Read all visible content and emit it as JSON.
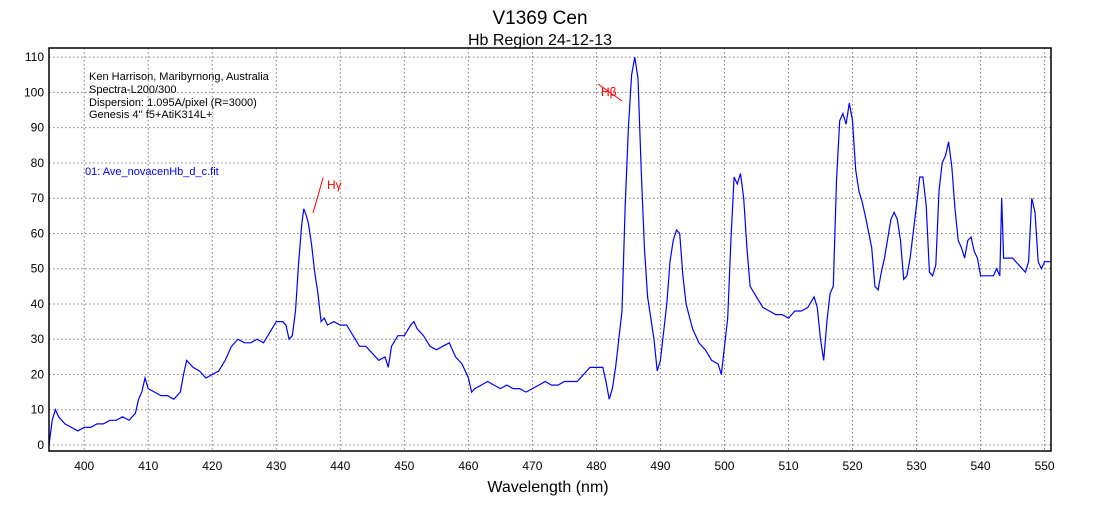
{
  "chart_data": {
    "type": "line",
    "title": "V1369 Cen",
    "subtitle": "Hb Region 24-12-13",
    "xlabel": "Wavelength (nm)",
    "ylabel": "",
    "xlim": [
      394.5,
      551
    ],
    "ylim": [
      -1.7,
      112.6
    ],
    "xticks": [
      400,
      410,
      420,
      430,
      440,
      450,
      460,
      470,
      480,
      490,
      500,
      510,
      520,
      530,
      540,
      550
    ],
    "yticks": [
      0,
      10,
      20,
      30,
      40,
      50,
      60,
      70,
      80,
      90,
      100,
      110
    ],
    "grid": true,
    "line_color": "#0000ff",
    "annotation_color": "#ff0000",
    "info_lines": [
      "Ken Harrison, Maribyrnong, Australia",
      "Spectra-L200/300",
      "Dispersion: 1.095A/pixel (R=3000)",
      "Genesis 4'' f5+AtiK314L+"
    ],
    "series_label": "01: Ave_novacenHb_d_c.fit",
    "annotations": [
      {
        "text": "Hγ",
        "x": 434.3
      },
      {
        "text": "Hβ",
        "x": 486.1
      }
    ],
    "series": [
      {
        "x": [
          394.5,
          395,
          395.5,
          396,
          397,
          398,
          399,
          400,
          401,
          402,
          403,
          404,
          405,
          406,
          407,
          408,
          408.5,
          409,
          409.5,
          410,
          411,
          412,
          413,
          414,
          415,
          415.5,
          416,
          417,
          418,
          419,
          420,
          421,
          422,
          423,
          424,
          425,
          426,
          427,
          428,
          429,
          430,
          431,
          431.5,
          432,
          432.5,
          433,
          433.5,
          434,
          434.3,
          434.7,
          435,
          435.5,
          436,
          436.5,
          437,
          437.5,
          438,
          439,
          440,
          441,
          442,
          443,
          444,
          445,
          446,
          447,
          447.5,
          448,
          449,
          450,
          451,
          451.5,
          452,
          453,
          454,
          455,
          456,
          457,
          458,
          459,
          460,
          460.5,
          461,
          462,
          463,
          464,
          465,
          466,
          467,
          468,
          469,
          470,
          471,
          472,
          473,
          474,
          475,
          476,
          477,
          478,
          479,
          480,
          481,
          481.5,
          482,
          482.5,
          483,
          484,
          484.5,
          485,
          485.5,
          486,
          486.5,
          487,
          487.5,
          488,
          489,
          489.5,
          490,
          491,
          491.5,
          492,
          492.5,
          493,
          493.5,
          494,
          495,
          496,
          497,
          498,
          499,
          499.5,
          500,
          500.5,
          501,
          501.5,
          502,
          502.5,
          503,
          503.5,
          504,
          505,
          506,
          507,
          508,
          509,
          510,
          511,
          512,
          513,
          514,
          514.5,
          515,
          515.5,
          516,
          516.5,
          517,
          517.5,
          518,
          518.5,
          519,
          519.5,
          520,
          520.5,
          521,
          521.5,
          522,
          523,
          523.5,
          524,
          524.5,
          525,
          526,
          526.5,
          527,
          527.5,
          528,
          528.5,
          529,
          530,
          530.5,
          531,
          531.5,
          532,
          532.5,
          533,
          533.5,
          534,
          534.5,
          535,
          535.5,
          536,
          536.5,
          537,
          537.5,
          538,
          538.5,
          539,
          539.5,
          540,
          541,
          542,
          542.5,
          543,
          543.3,
          543.6,
          544,
          545,
          546,
          547,
          547.5,
          548,
          548.5,
          549,
          549.5,
          550,
          551
        ],
        "values": [
          0,
          7,
          10,
          8,
          6,
          5,
          4,
          5,
          5,
          6,
          6,
          7,
          7,
          8,
          7,
          9,
          13,
          15,
          19,
          16,
          15,
          14,
          14,
          13,
          15,
          20,
          24,
          22,
          21,
          19,
          20,
          21,
          24,
          28,
          30,
          29,
          29,
          30,
          29,
          32,
          35,
          35,
          34,
          30,
          31,
          38,
          52,
          63,
          67,
          65,
          63,
          57,
          49,
          43,
          35,
          36,
          34,
          35,
          34,
          34,
          31,
          28,
          28,
          26,
          24,
          25,
          22,
          28,
          31,
          31,
          34,
          35,
          33,
          31,
          28,
          27,
          28,
          29,
          25,
          23,
          19,
          15,
          16,
          17,
          18,
          17,
          16,
          17,
          16,
          16,
          15,
          16,
          17,
          18,
          17,
          17,
          18,
          18,
          18,
          20,
          22,
          22,
          22,
          18,
          13,
          16,
          22,
          38,
          68,
          90,
          105,
          110,
          104,
          78,
          56,
          42,
          30,
          21,
          24,
          40,
          52,
          58,
          61,
          60,
          48,
          40,
          33,
          29,
          27,
          24,
          23,
          20,
          28,
          36,
          58,
          76,
          74,
          77,
          70,
          56,
          45,
          42,
          39,
          38,
          37,
          37,
          36,
          38,
          38,
          39,
          42,
          39,
          30,
          24,
          35,
          43,
          45,
          75,
          92,
          94,
          91,
          97,
          92,
          78,
          72,
          69,
          65,
          56,
          45,
          44,
          49,
          53,
          64,
          66,
          64,
          58,
          47,
          48,
          53,
          68,
          76,
          76,
          68,
          49,
          48,
          51,
          72,
          80,
          82,
          86,
          79,
          67,
          58,
          56,
          53,
          58,
          59,
          55,
          53,
          48,
          48,
          48,
          50,
          48,
          70,
          53,
          53,
          53,
          51,
          49,
          52,
          70,
          66,
          52,
          50,
          52,
          52
        ]
      }
    ]
  }
}
